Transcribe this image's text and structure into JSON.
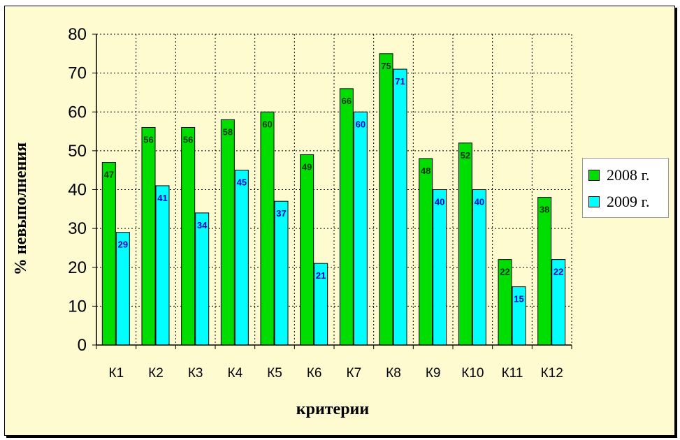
{
  "chart_data": {
    "type": "bar",
    "categories": [
      "К1",
      "К2",
      "К3",
      "К4",
      "К5",
      "К6",
      "К7",
      "К8",
      "К9",
      "К10",
      "К11",
      "К12"
    ],
    "series": [
      {
        "name": "2008 г.",
        "values": [
          47,
          56,
          56,
          58,
          60,
          49,
          66,
          75,
          48,
          52,
          22,
          38
        ],
        "color": "#00dd00",
        "label_color": "#003300"
      },
      {
        "name": "2009 г.",
        "values": [
          29,
          41,
          34,
          45,
          37,
          21,
          60,
          71,
          40,
          40,
          15,
          22
        ],
        "color": "#00ffff",
        "label_color": "#0000cc"
      }
    ],
    "xlabel": "критерии",
    "ylabel": "% невыполнения",
    "ylim": [
      0,
      80
    ],
    "yticks": [
      0,
      10,
      20,
      30,
      40,
      50,
      60,
      70,
      80
    ],
    "grid": true,
    "legend_position": "right",
    "background_color": "#fffbd0",
    "gridline_color": "#000000"
  }
}
